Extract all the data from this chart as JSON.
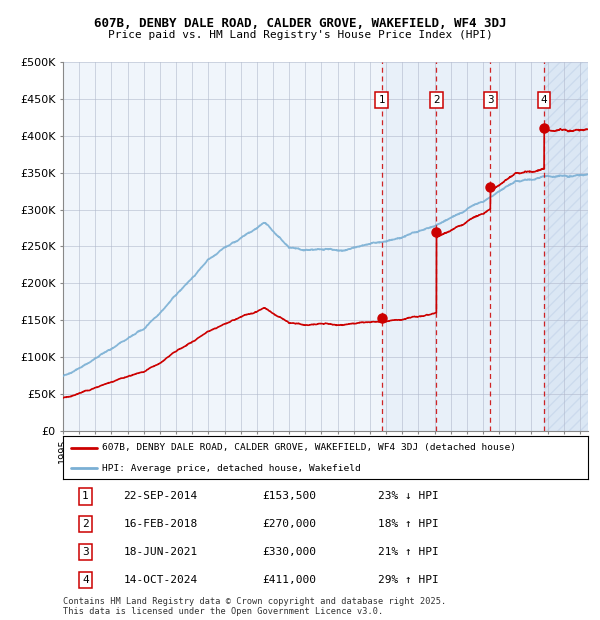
{
  "title": "607B, DENBY DALE ROAD, CALDER GROVE, WAKEFIELD, WF4 3DJ",
  "subtitle": "Price paid vs. HM Land Registry's House Price Index (HPI)",
  "ylim": [
    0,
    500000
  ],
  "yticks": [
    0,
    50000,
    100000,
    150000,
    200000,
    250000,
    300000,
    350000,
    400000,
    450000,
    500000
  ],
  "ytick_labels": [
    "£0",
    "£50K",
    "£100K",
    "£150K",
    "£200K",
    "£250K",
    "£300K",
    "£350K",
    "£400K",
    "£450K",
    "£500K"
  ],
  "hpi_color": "#7aafd4",
  "price_color": "#cc0000",
  "vline_color": "#cc0000",
  "bg_color": "#dce9f7",
  "plot_bg": "#ffffff",
  "grid_color": "#b0b8cc",
  "sale_dates_float": [
    2014.728,
    2018.121,
    2021.463,
    2024.786
  ],
  "sale_prices": [
    153500,
    270000,
    330000,
    411000
  ],
  "sale_labels": [
    "1",
    "2",
    "3",
    "4"
  ],
  "table_rows": [
    [
      "1",
      "22-SEP-2014",
      "£153,500",
      "23% ↓ HPI"
    ],
    [
      "2",
      "16-FEB-2018",
      "£270,000",
      "18% ↑ HPI"
    ],
    [
      "3",
      "18-JUN-2021",
      "£330,000",
      "21% ↑ HPI"
    ],
    [
      "4",
      "14-OCT-2024",
      "£411,000",
      "29% ↑ HPI"
    ]
  ],
  "legend_entries": [
    "607B, DENBY DALE ROAD, CALDER GROVE, WAKEFIELD, WF4 3DJ (detached house)",
    "HPI: Average price, detached house, Wakefield"
  ],
  "footer": "Contains HM Land Registry data © Crown copyright and database right 2025.\nThis data is licensed under the Open Government Licence v3.0.",
  "xstart": 1995.0,
  "xend": 2027.5
}
